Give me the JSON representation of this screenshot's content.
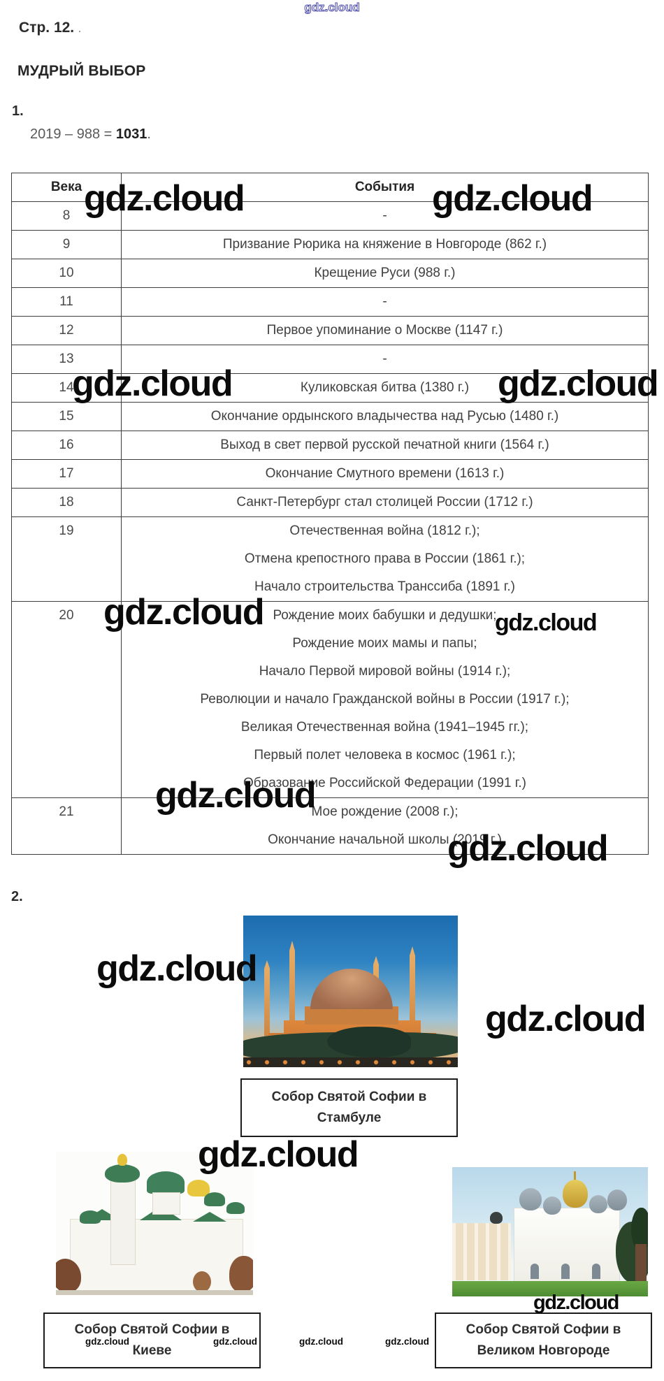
{
  "page": {
    "title": "Стр. 12.",
    "title_dot": ".",
    "heading": "МУДРЫЙ ВЫБОР"
  },
  "task1": {
    "label": "1.",
    "equation": {
      "expression": "2019 – 988 = ",
      "result": "1031",
      "period": "."
    }
  },
  "table": {
    "columns": [
      "Века",
      "События"
    ],
    "rows": [
      {
        "century": "8",
        "events": [
          "-"
        ]
      },
      {
        "century": "9",
        "events": [
          "Призвание Рюрика на княжение в Новгороде (862 г.)"
        ]
      },
      {
        "century": "10",
        "events": [
          "Крещение Руси (988 г.)"
        ]
      },
      {
        "century": "11",
        "events": [
          "-"
        ]
      },
      {
        "century": "12",
        "events": [
          "Первое упоминание о Москве (1147 г.)"
        ]
      },
      {
        "century": "13",
        "events": [
          "-"
        ]
      },
      {
        "century": "14",
        "events": [
          "Куликовская битва (1380 г.)"
        ]
      },
      {
        "century": "15",
        "events": [
          "Окончание ордынского владычества над Русью (1480 г.)"
        ]
      },
      {
        "century": "16",
        "events": [
          "Выход в свет первой русской печатной книги (1564 г.)"
        ]
      },
      {
        "century": "17",
        "events": [
          "Окончание Смутного времени (1613 г.)"
        ]
      },
      {
        "century": "18",
        "events": [
          "Санкт-Петербург стал столицей России (1712 г.)"
        ]
      },
      {
        "century": "19",
        "events": [
          "Отечественная война (1812 г.);",
          "Отмена крепостного права в России (1861 г.);",
          "Начало строительства Транссиба (1891 г.)"
        ]
      },
      {
        "century": "20",
        "events": [
          "Рождение моих бабушки и дедушки;",
          "Рождение моих мамы и папы;",
          "Начало Первой мировой войны (1914 г.);",
          "Революции и начало Гражданской войны в России (1917 г.);",
          "Великая Отечественная война (1941–1945 гг.);",
          "Первый полет человека в космос (1961 г.);",
          "Образование Российской Федерации (1991 г.)"
        ]
      },
      {
        "century": "21",
        "events": [
          "Мое рождение (2008 г.);",
          "Окончание начальной школы (2019 г.)"
        ]
      }
    ]
  },
  "task2": {
    "label": "2.",
    "photos": [
      {
        "name": "istanbul",
        "caption_line1": "Собор Святой Софии в",
        "caption_line2": "Стамбуле"
      },
      {
        "name": "kiev",
        "caption_line1": "Собор Святой Софии в",
        "caption_line2": "Киеве"
      },
      {
        "name": "novgorod",
        "caption_line1": "Собор Святой Софии в",
        "caption_line2": "Великом Новгороде"
      }
    ]
  },
  "watermark": {
    "text": "gdz.cloud",
    "color": "#0b0b0b",
    "outline_color": "#4747a8"
  }
}
